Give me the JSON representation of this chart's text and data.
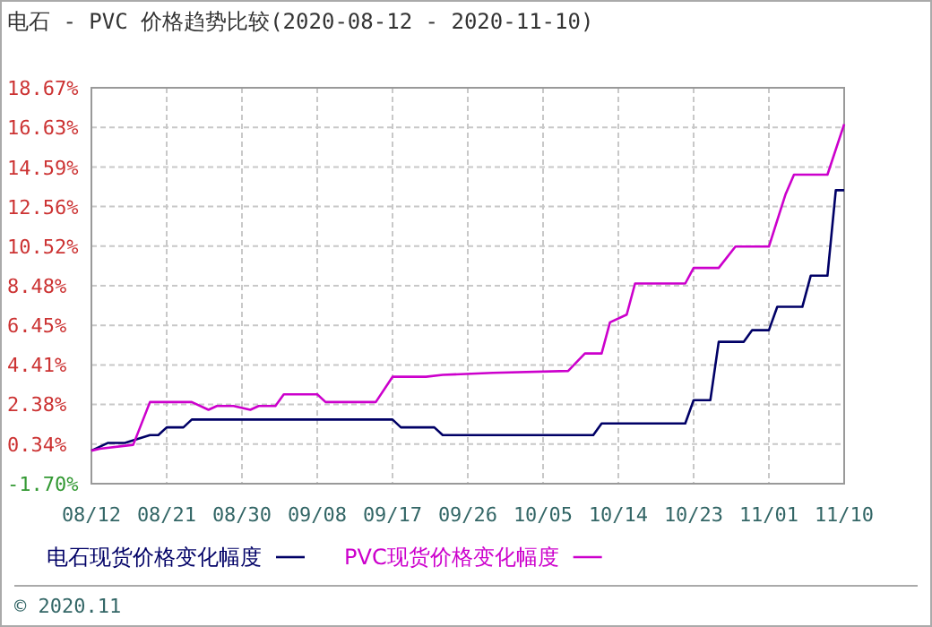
{
  "chart_data": {
    "type": "line",
    "title": "电石 - PVC 价格趋势比较(2020-08-12 - 2020-11-10)",
    "xlim": [
      "2020-08-12",
      "2020-11-10"
    ],
    "xticks": [
      {
        "value": "2020-08-12",
        "label": "08/12"
      },
      {
        "value": "2020-08-21",
        "label": "08/21"
      },
      {
        "value": "2020-08-30",
        "label": "08/30"
      },
      {
        "value": "2020-09-08",
        "label": "09/08"
      },
      {
        "value": "2020-09-17",
        "label": "09/17"
      },
      {
        "value": "2020-09-26",
        "label": "09/26"
      },
      {
        "value": "2020-10-05",
        "label": "10/05"
      },
      {
        "value": "2020-10-14",
        "label": "10/14"
      },
      {
        "value": "2020-10-23",
        "label": "10/23"
      },
      {
        "value": "2020-11-01",
        "label": "11/01"
      },
      {
        "value": "2020-11-10",
        "label": "11/10"
      }
    ],
    "ylim": [
      -1.7,
      18.67
    ],
    "yticks": [
      {
        "value": -1.7,
        "label": "-1.70%"
      },
      {
        "value": 0.34,
        "label": "0.34%"
      },
      {
        "value": 2.38,
        "label": "2.38%"
      },
      {
        "value": 4.41,
        "label": "4.41%"
      },
      {
        "value": 6.45,
        "label": "6.45%"
      },
      {
        "value": 8.48,
        "label": "8.48%"
      },
      {
        "value": 10.52,
        "label": "10.52%"
      },
      {
        "value": 12.56,
        "label": "12.56%"
      },
      {
        "value": 14.59,
        "label": "14.59%"
      },
      {
        "value": 16.63,
        "label": "16.63%"
      },
      {
        "value": 18.67,
        "label": "18.67%"
      }
    ],
    "grid": true,
    "legend": "bottom",
    "marker": "none",
    "line_style": "solid",
    "series": [
      {
        "name": "电石现货价格变化幅度",
        "color": "#000066",
        "x": [
          "2020-08-12",
          "2020-08-14",
          "2020-08-16",
          "2020-08-19",
          "2020-08-20",
          "2020-08-21",
          "2020-08-23",
          "2020-08-24",
          "2020-09-17",
          "2020-09-18",
          "2020-09-22",
          "2020-09-23",
          "2020-10-08",
          "2020-10-11",
          "2020-10-12",
          "2020-10-22",
          "2020-10-23",
          "2020-10-25",
          "2020-10-26",
          "2020-10-29",
          "2020-10-30",
          "2020-11-01",
          "2020-11-02",
          "2020-11-05",
          "2020-11-06",
          "2020-11-08",
          "2020-11-09",
          "2020-11-10"
        ],
        "values": [
          0,
          0.4,
          0.4,
          0.8,
          0.8,
          1.2,
          1.2,
          1.6,
          1.6,
          1.2,
          1.2,
          0.8,
          0.8,
          0.8,
          1.4,
          1.4,
          2.6,
          2.6,
          5.6,
          5.6,
          6.2,
          6.2,
          7.4,
          7.4,
          9.0,
          9.0,
          13.4,
          13.4
        ]
      },
      {
        "name": "PVC现货价格变化幅度",
        "color": "#cc00cc",
        "x": [
          "2020-08-12",
          "2020-08-13",
          "2020-08-17",
          "2020-08-19",
          "2020-08-24",
          "2020-08-26",
          "2020-08-27",
          "2020-08-29",
          "2020-08-31",
          "2020-09-01",
          "2020-09-03",
          "2020-09-04",
          "2020-09-08",
          "2020-09-09",
          "2020-09-15",
          "2020-09-17",
          "2020-09-21",
          "2020-09-23",
          "2020-09-29",
          "2020-10-08",
          "2020-10-10",
          "2020-10-12",
          "2020-10-13",
          "2020-10-15",
          "2020-10-16",
          "2020-10-22",
          "2020-10-23",
          "2020-10-26",
          "2020-10-28",
          "2020-11-01",
          "2020-11-03",
          "2020-11-04",
          "2020-11-08",
          "2020-11-10"
        ],
        "values": [
          0,
          0.1,
          0.3,
          2.5,
          2.5,
          2.1,
          2.3,
          2.3,
          2.1,
          2.3,
          2.3,
          2.9,
          2.9,
          2.5,
          2.5,
          3.8,
          3.8,
          3.9,
          4.0,
          4.1,
          5.0,
          5.0,
          6.6,
          7.0,
          8.6,
          8.6,
          9.4,
          9.4,
          10.5,
          10.5,
          13.2,
          14.2,
          14.2,
          16.8
        ]
      }
    ],
    "annotations": [
      "© 2020.11"
    ]
  }
}
